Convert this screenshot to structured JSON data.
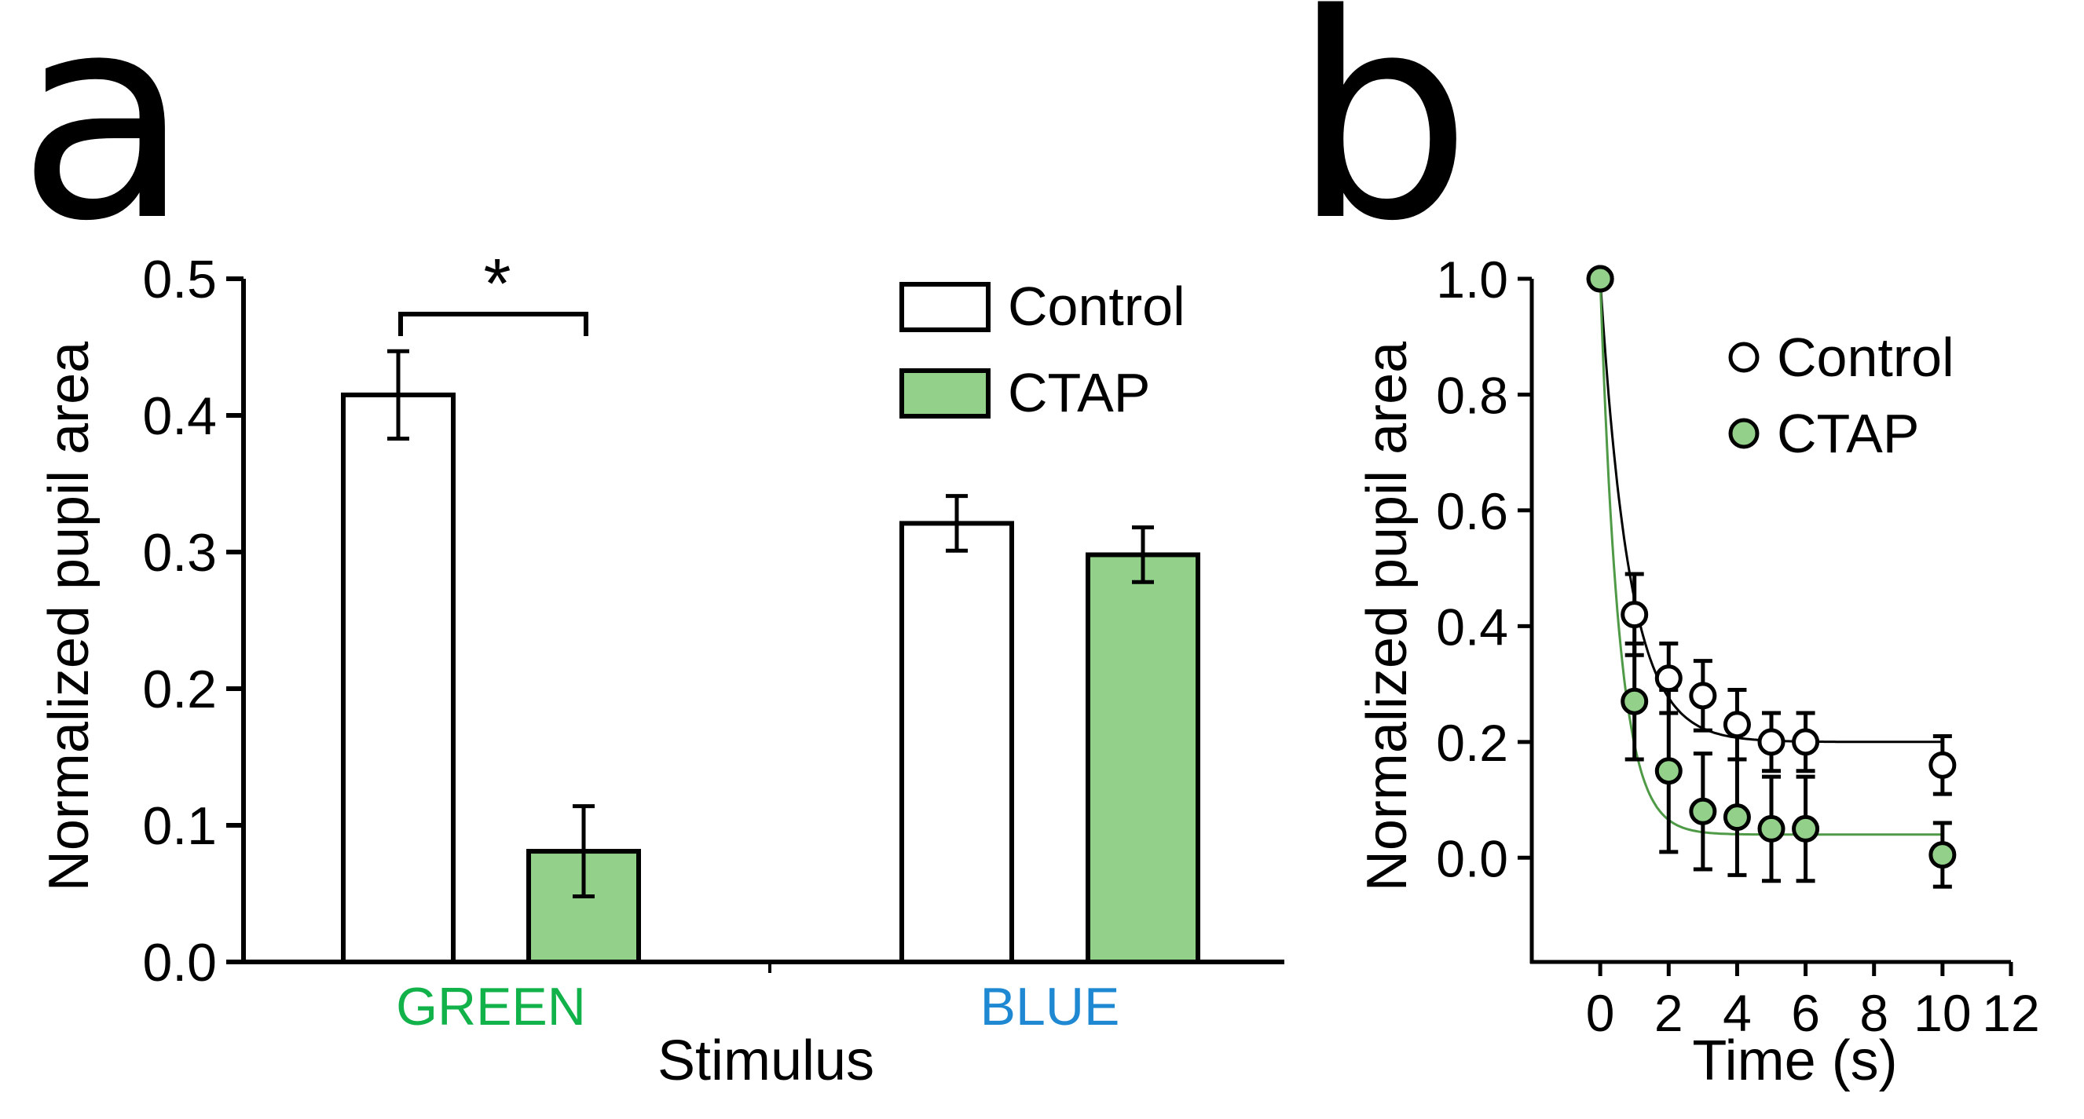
{
  "panels": {
    "a": {
      "letter": "a"
    },
    "b": {
      "letter": "b"
    }
  },
  "colors": {
    "green_fill": "#93d08a",
    "green_line": "#4f9a46",
    "green_text": "#11b24a",
    "blue_text": "#1e88d2",
    "ink": "#000000",
    "white": "#ffffff"
  },
  "chart_data": [
    {
      "type": "bar",
      "panel": "a",
      "xlabel": "Stimulus",
      "ylabel": "Normalized pupil area",
      "ylim": [
        0,
        0.5
      ],
      "yticks": [
        "0.0",
        "0.1",
        "0.2",
        "0.3",
        "0.4",
        "0.5"
      ],
      "categories": [
        "GREEN",
        "BLUE"
      ],
      "category_colors": [
        "#11b24a",
        "#1e88d2"
      ],
      "series": [
        {
          "name": "Control",
          "fill": "#ffffff",
          "values": [
            0.415,
            0.321
          ],
          "errors": [
            0.032,
            0.02
          ]
        },
        {
          "name": "CTAP",
          "fill": "#93d08a",
          "values": [
            0.081,
            0.298
          ],
          "errors": [
            0.033,
            0.02
          ]
        }
      ],
      "significance": {
        "label": "*",
        "between": [
          "GREEN Control",
          "GREEN CTAP"
        ]
      },
      "legend": {
        "position": "top-right",
        "labels": [
          "Control",
          "CTAP"
        ]
      }
    },
    {
      "type": "scatter",
      "panel": "b",
      "xlabel": "Time (s)",
      "ylabel": "Normalized pupil area",
      "xlim": [
        -2,
        12
      ],
      "ylim": [
        -0.18,
        1.0
      ],
      "xticks": [
        "0",
        "2",
        "4",
        "6",
        "8",
        "10",
        "12"
      ],
      "yticks": [
        "0.0",
        "0.2",
        "0.4",
        "0.6",
        "0.8",
        "1.0"
      ],
      "series": [
        {
          "name": "Control",
          "marker": "open",
          "x": [
            0,
            1,
            2,
            3,
            4,
            5,
            6,
            10
          ],
          "y": [
            1.0,
            0.42,
            0.31,
            0.28,
            0.23,
            0.2,
            0.2,
            0.16
          ],
          "errors": [
            0,
            0.07,
            0.06,
            0.06,
            0.06,
            0.05,
            0.05,
            0.05
          ],
          "fit": {
            "plateau": 0.2,
            "tau": 0.85
          }
        },
        {
          "name": "CTAP",
          "marker": "filled",
          "x": [
            0,
            1,
            2,
            3,
            4,
            5,
            6,
            10
          ],
          "y": [
            1.0,
            0.27,
            0.15,
            0.08,
            0.07,
            0.05,
            0.05,
            0.005
          ],
          "errors": [
            0,
            0.1,
            0.14,
            0.1,
            0.1,
            0.09,
            0.09,
            0.055
          ],
          "fit": {
            "plateau": 0.04,
            "tau": 0.55
          }
        }
      ],
      "legend": {
        "position": "top-right",
        "labels": [
          "Control",
          "CTAP"
        ]
      }
    }
  ]
}
